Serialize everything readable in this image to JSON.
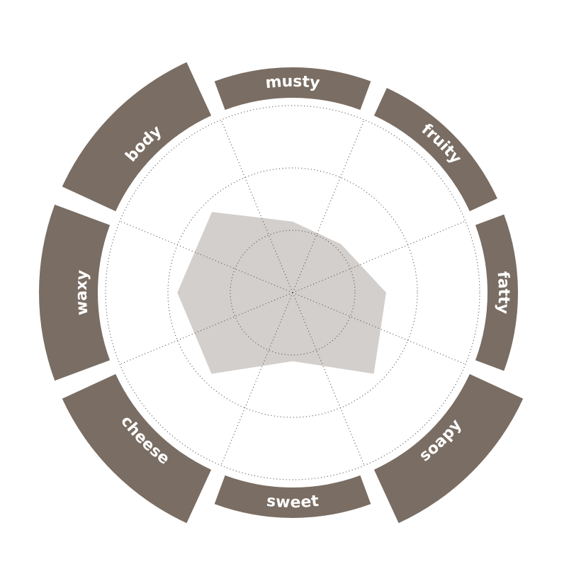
{
  "chart_data": {
    "type": "radar",
    "categories": [
      "musty",
      "fruity",
      "fatty",
      "soapy",
      "sweet",
      "cheese",
      "waxy",
      "body"
    ],
    "values": [
      1.14,
      1.1,
      1.5,
      1.84,
      1.1,
      1.84,
      1.85,
      1.83
    ],
    "rlim": [
      0,
      3
    ],
    "rticks": [
      1,
      2,
      3
    ],
    "grid": true,
    "color": "#d3cfcd",
    "band_color": "#7a6d63"
  }
}
